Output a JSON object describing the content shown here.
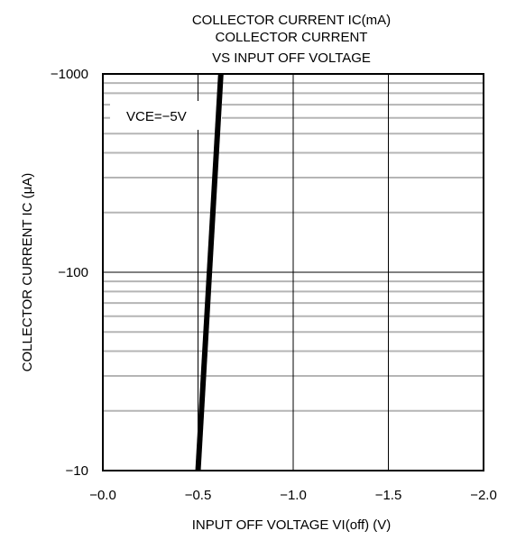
{
  "chart_data": {
    "type": "line",
    "title_lines": [
      "COLLECTOR CURRENT  IC(mA)",
      "COLLECTOR CURRENT",
      "VS INPUT OFF VOLTAGE"
    ],
    "xlabel": "INPUT OFF VOLTAGE VI(off) (V)",
    "ylabel": "COLLECTOR CURRENT IC (μA)",
    "x_scale": "linear",
    "y_scale": "log",
    "xlim": [
      0.0,
      -2.0
    ],
    "ylim": [
      -10,
      -1000
    ],
    "x_ticks": [
      0.0,
      -0.5,
      -1.0,
      -1.5,
      -2.0
    ],
    "x_tick_labels": [
      "−0.0",
      "−0.5",
      "−1.0",
      "−1.5",
      "−2.0"
    ],
    "y_ticks": [
      -10,
      -100,
      -1000
    ],
    "y_tick_labels": [
      "−10",
      "−100",
      "−1000"
    ],
    "grid": true,
    "annotation": "VCE=−5V",
    "series": [
      {
        "x": [
          -0.5,
          -0.62
        ],
        "y": [
          -10,
          -1000
        ]
      }
    ]
  }
}
